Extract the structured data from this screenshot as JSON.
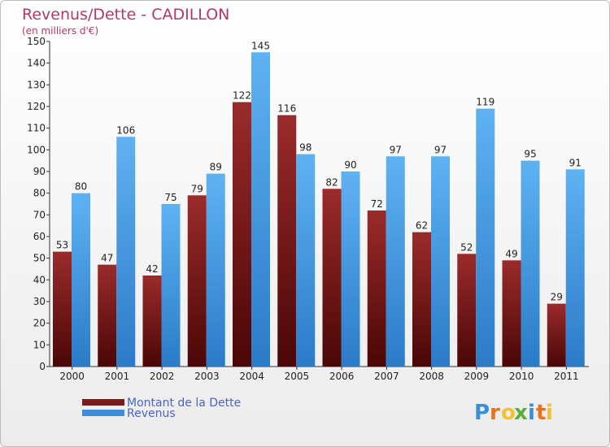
{
  "chart_data": {
    "type": "bar",
    "title": "Revenus/Dette - CADILLON",
    "subtitle": "(en milliers d'€)",
    "categories": [
      "2000",
      "2001",
      "2002",
      "2003",
      "2004",
      "2005",
      "2006",
      "2007",
      "2008",
      "2009",
      "2010",
      "2011"
    ],
    "series": [
      {
        "name": "Montant de la Dette",
        "color": "#7a1a1a",
        "values": [
          53,
          47,
          42,
          79,
          122,
          116,
          82,
          72,
          62,
          52,
          49,
          29
        ]
      },
      {
        "name": "Revenus",
        "color": "#3d8fdc",
        "values": [
          80,
          106,
          75,
          89,
          145,
          98,
          90,
          97,
          97,
          119,
          95,
          91
        ]
      }
    ],
    "ylim": [
      0,
      150
    ],
    "yticks": [
      0,
      10,
      20,
      30,
      40,
      50,
      60,
      70,
      80,
      90,
      100,
      110,
      120,
      130,
      140,
      150
    ],
    "grid": false,
    "legend_position": "bottom-left"
  },
  "logo": {
    "letters": [
      "P",
      "r",
      "o",
      "x",
      "i",
      "t",
      "i"
    ],
    "colors": [
      "#3b8fd4",
      "#e9731d",
      "#f1c232",
      "#5cae3a",
      "#3b8fd4",
      "#e9731d",
      "#f1c232"
    ]
  }
}
